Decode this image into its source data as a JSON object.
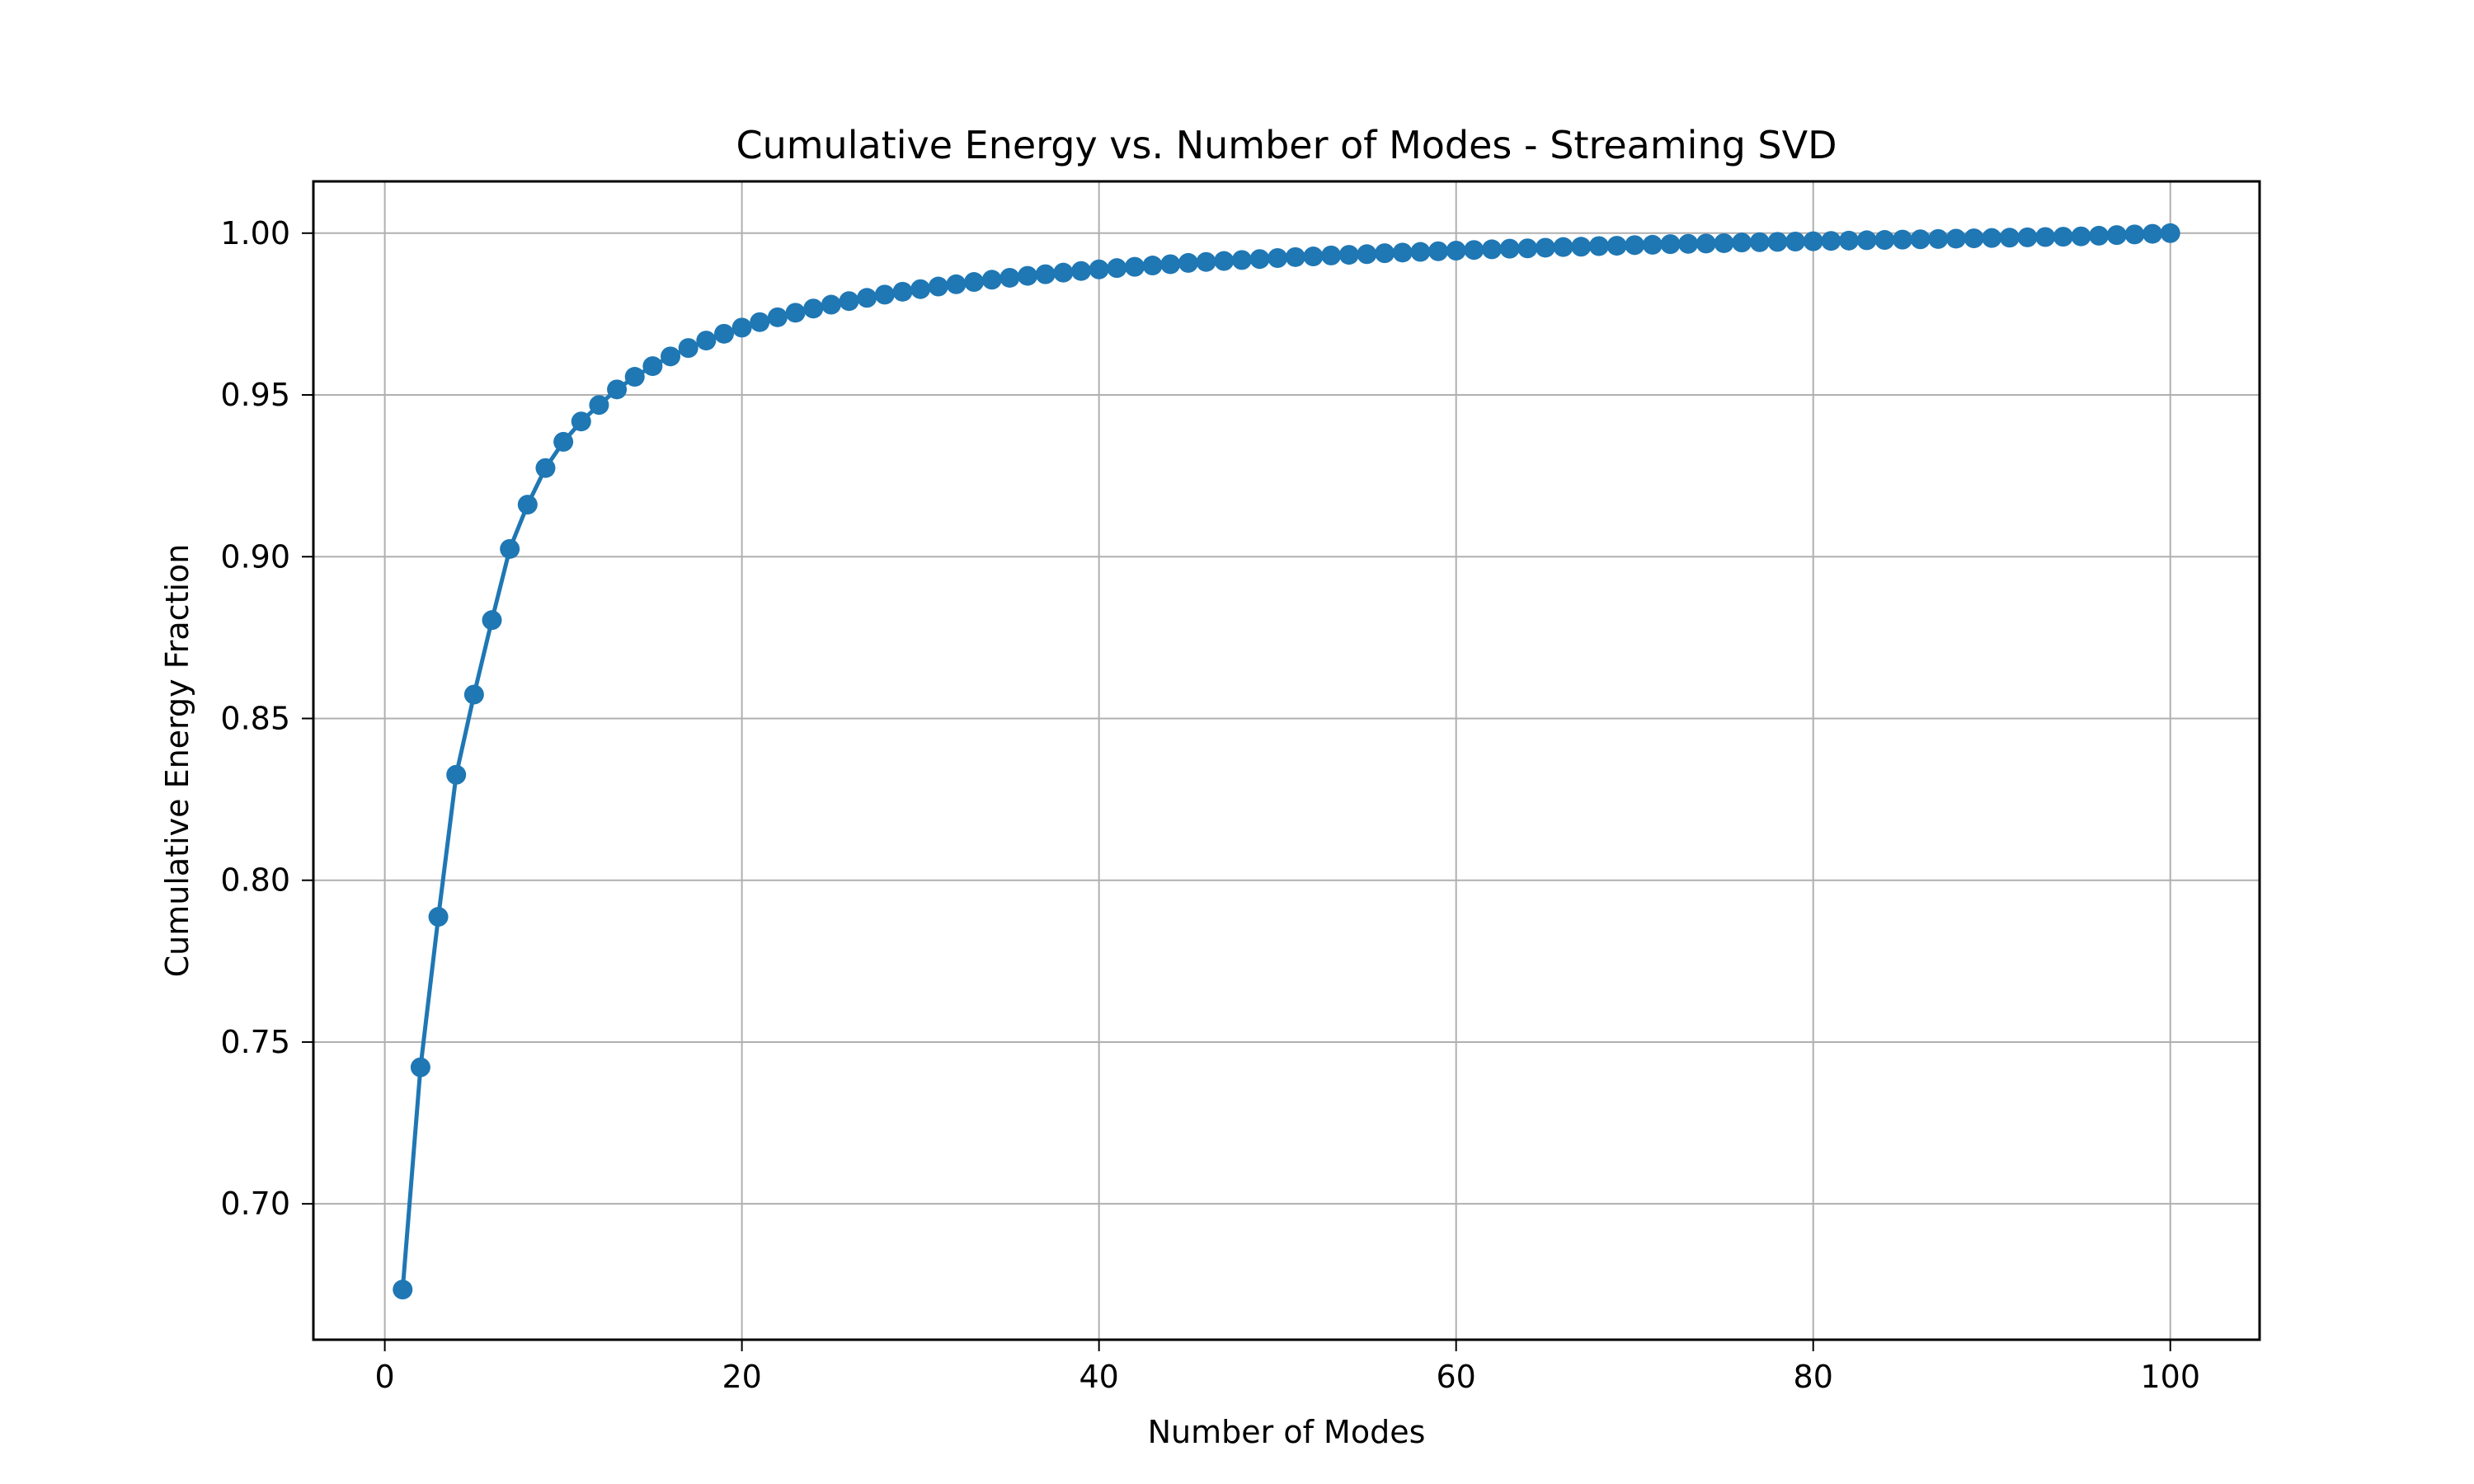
{
  "chart_data": {
    "type": "line",
    "title": "Cumulative Energy vs. Number of Modes - Streaming SVD",
    "xlabel": "Number of Modes",
    "ylabel": "Cumulative Energy Fraction",
    "xlim": [
      -4,
      105
    ],
    "ylim": [
      0.658,
      1.016
    ],
    "xticks": [
      0,
      20,
      40,
      60,
      80,
      100
    ],
    "xtick_labels": [
      "0",
      "20",
      "40",
      "60",
      "80",
      "100"
    ],
    "yticks": [
      0.7,
      0.75,
      0.8,
      0.85,
      0.9,
      0.95,
      1.0
    ],
    "ytick_labels": [
      "0.70",
      "0.75",
      "0.80",
      "0.85",
      "0.90",
      "0.95",
      "1.00"
    ],
    "grid": true,
    "marker": "o",
    "color": "#1f77b4",
    "x": [
      1,
      2,
      3,
      4,
      5,
      6,
      7,
      8,
      9,
      10,
      11,
      12,
      13,
      14,
      15,
      16,
      17,
      18,
      19,
      20,
      21,
      22,
      23,
      24,
      25,
      26,
      27,
      28,
      29,
      30,
      31,
      32,
      33,
      34,
      35,
      36,
      37,
      38,
      39,
      40,
      41,
      42,
      43,
      44,
      45,
      46,
      47,
      48,
      49,
      50,
      51,
      52,
      53,
      54,
      55,
      56,
      57,
      58,
      59,
      60,
      61,
      62,
      63,
      64,
      65,
      66,
      67,
      68,
      69,
      70,
      71,
      72,
      73,
      74,
      75,
      76,
      77,
      78,
      79,
      80,
      81,
      82,
      83,
      84,
      85,
      86,
      87,
      88,
      89,
      90,
      91,
      92,
      93,
      94,
      95,
      96,
      97,
      98,
      99,
      100
    ],
    "y": [
      0.6735,
      0.7422,
      0.7887,
      0.8326,
      0.8574,
      0.8804,
      0.9024,
      0.9161,
      0.9274,
      0.9355,
      0.9418,
      0.9469,
      0.9517,
      0.9556,
      0.9589,
      0.9619,
      0.9645,
      0.9668,
      0.9689,
      0.9708,
      0.9725,
      0.974,
      0.9754,
      0.9767,
      0.9779,
      0.979,
      0.98,
      0.981,
      0.9819,
      0.9827,
      0.9835,
      0.9842,
      0.9849,
      0.9856,
      0.9862,
      0.9868,
      0.9873,
      0.9878,
      0.9883,
      0.9888,
      0.9892,
      0.9896,
      0.99,
      0.9904,
      0.9908,
      0.9911,
      0.9914,
      0.9917,
      0.992,
      0.9923,
      0.9926,
      0.9928,
      0.9931,
      0.9933,
      0.9935,
      0.9938,
      0.994,
      0.9942,
      0.9944,
      0.9946,
      0.9948,
      0.995,
      0.9952,
      0.9953,
      0.9955,
      0.9957,
      0.9958,
      0.996,
      0.9961,
      0.9963,
      0.9964,
      0.9966,
      0.9967,
      0.9968,
      0.9969,
      0.9971,
      0.9972,
      0.9973,
      0.9974,
      0.9975,
      0.9976,
      0.9977,
      0.9978,
      0.9979,
      0.998,
      0.9981,
      0.9982,
      0.9983,
      0.9984,
      0.9985,
      0.9986,
      0.9987,
      0.9988,
      0.9989,
      0.999,
      0.9992,
      0.9994,
      0.9996,
      0.9998,
      1.0
    ]
  }
}
